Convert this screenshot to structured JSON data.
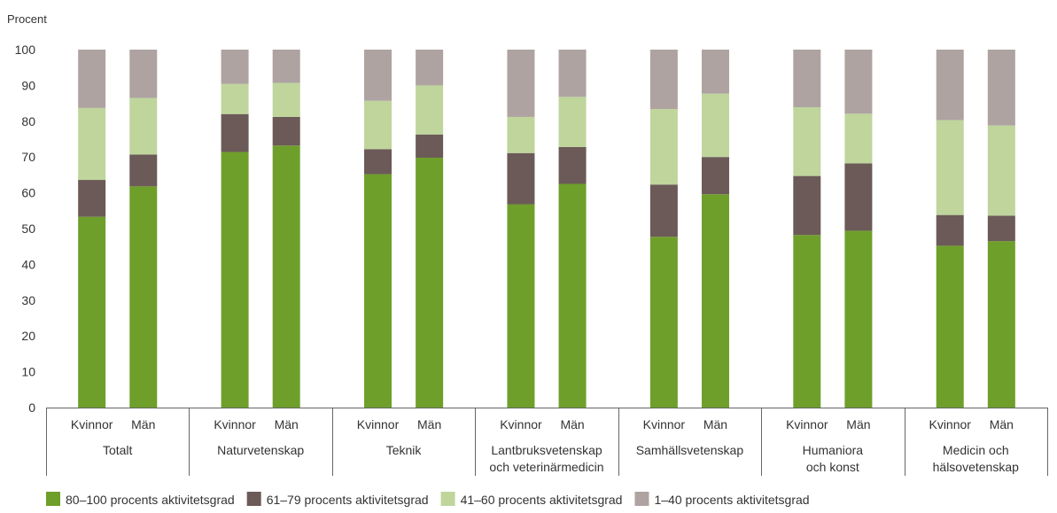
{
  "chart_data": {
    "type": "bar",
    "stacked": true,
    "ylabel": "Procent",
    "ylim": [
      0,
      100
    ],
    "yticks": [
      0,
      10,
      20,
      30,
      40,
      50,
      60,
      70,
      80,
      90,
      100
    ],
    "grid": false,
    "legend_position": "bottom-left",
    "groups": [
      {
        "label": [
          "Totalt"
        ],
        "bars": [
          "Kvinnor",
          "Män"
        ]
      },
      {
        "label": [
          "Naturvetenskap"
        ],
        "bars": [
          "Kvinnor",
          "Män"
        ]
      },
      {
        "label": [
          "Teknik"
        ],
        "bars": [
          "Kvinnor",
          "Män"
        ]
      },
      {
        "label": [
          "Lantbruksvetenskap",
          "och veterinärmedicin"
        ],
        "bars": [
          "Kvinnor",
          "Män"
        ]
      },
      {
        "label": [
          "Samhällsvetenskap"
        ],
        "bars": [
          "Kvinnor",
          "Män"
        ]
      },
      {
        "label": [
          "Humaniora",
          "och konst"
        ],
        "bars": [
          "Kvinnor",
          "Män"
        ]
      },
      {
        "label": [
          "Medicin och",
          "hälsovetenskap"
        ],
        "bars": [
          "Kvinnor",
          "Män"
        ]
      }
    ],
    "series": [
      {
        "name": "80–100 procents aktivitetsgrad",
        "color": "#6f9f2b",
        "values": [
          53.3,
          61.8,
          71.4,
          73.2,
          65.2,
          69.8,
          56.8,
          62.5,
          47.7,
          59.6,
          48.2,
          49.4,
          45.2,
          46.5
        ]
      },
      {
        "name": "61–79 procents aktivitetsgrad",
        "color": "#6b5a57",
        "values": [
          10.3,
          8.9,
          10.6,
          8.0,
          7.0,
          6.5,
          14.3,
          10.3,
          14.6,
          10.4,
          16.5,
          18.8,
          8.6,
          7.1
        ]
      },
      {
        "name": "41–60 procents aktivitetsgrad",
        "color": "#bfd59c",
        "values": [
          20.1,
          15.8,
          8.4,
          9.5,
          13.5,
          13.7,
          10.1,
          14.0,
          21.1,
          17.7,
          19.2,
          13.9,
          26.5,
          25.2
        ]
      },
      {
        "name": "1–40 procents aktivitetsgrad",
        "color": "#aea3a1",
        "values": [
          16.3,
          13.5,
          9.6,
          9.3,
          14.3,
          10.0,
          18.8,
          13.2,
          16.6,
          12.3,
          16.1,
          17.9,
          19.7,
          21.2
        ]
      }
    ]
  },
  "colors": {
    "axis": "#666666",
    "text": "#333333"
  }
}
